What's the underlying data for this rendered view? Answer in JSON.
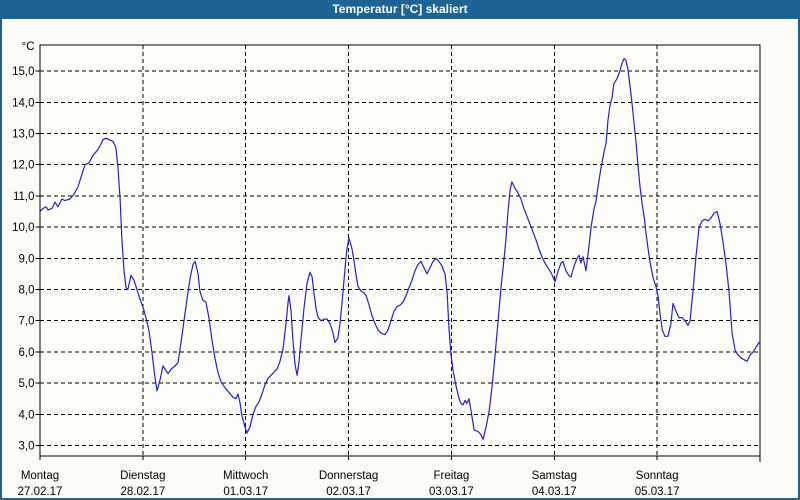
{
  "window": {
    "title": "Temperatur [°C] skaliert"
  },
  "colors": {
    "titlebar_bg": "#1d6396",
    "titlebar_text": "#ffffff",
    "window_bg": "#fbfcf5",
    "plot_bg": "#fefffb",
    "grid": "#000000",
    "frame": "#000000",
    "series_line": "#2121ce",
    "label_text": "#000000"
  },
  "chart_data": {
    "type": "line",
    "title": "Temperatur [°C] skaliert",
    "y_unit_label": "°C",
    "ylabel": "",
    "xlabel": "",
    "ylim": [
      2.6,
      15.8
    ],
    "x_range_hours": [
      0,
      168
    ],
    "grid": "dashed",
    "legend_position": "none",
    "y_ticks": [
      {
        "value": 15,
        "label": "15,0"
      },
      {
        "value": 14,
        "label": "14,0"
      },
      {
        "value": 13,
        "label": "13,0"
      },
      {
        "value": 12,
        "label": "12,0"
      },
      {
        "value": 11,
        "label": "11,0"
      },
      {
        "value": 10,
        "label": "10,0"
      },
      {
        "value": 9,
        "label": "9,0"
      },
      {
        "value": 8,
        "label": "8,0"
      },
      {
        "value": 7,
        "label": "7,0"
      },
      {
        "value": 6,
        "label": "6,0"
      },
      {
        "value": 5,
        "label": "5,0"
      },
      {
        "value": 4,
        "label": "4,0"
      },
      {
        "value": 3,
        "label": "3,0"
      }
    ],
    "x_days": [
      {
        "hour": 0,
        "name": "Montag",
        "date": "27.02.17"
      },
      {
        "hour": 24,
        "name": "Dienstag",
        "date": "28.02.17"
      },
      {
        "hour": 48,
        "name": "Mittwoch",
        "date": "01.03.17"
      },
      {
        "hour": 72,
        "name": "Donnerstag",
        "date": "02.03.17"
      },
      {
        "hour": 96,
        "name": "Freitag",
        "date": "03.03.17"
      },
      {
        "hour": 120,
        "name": "Samstag",
        "date": "04.03.17"
      },
      {
        "hour": 144,
        "name": "Sonntag",
        "date": "05.03.17"
      }
    ],
    "series": [
      {
        "name": "Temperatur",
        "color": "#2121ce",
        "points": [
          [
            0,
            10.5
          ],
          [
            0.7,
            10.6
          ],
          [
            1.4,
            10.65
          ],
          [
            1.9,
            10.55
          ],
          [
            2.8,
            10.6
          ],
          [
            3.5,
            10.8
          ],
          [
            4.2,
            10.65
          ],
          [
            5.1,
            10.9
          ],
          [
            5.8,
            10.85
          ],
          [
            7,
            10.9
          ],
          [
            7.9,
            11.05
          ],
          [
            8.9,
            11.3
          ],
          [
            9.8,
            11.7
          ],
          [
            10.5,
            12.0
          ],
          [
            11.4,
            12.05
          ],
          [
            12.4,
            12.3
          ],
          [
            13.3,
            12.45
          ],
          [
            14,
            12.6
          ],
          [
            14.7,
            12.8
          ],
          [
            15.4,
            12.85
          ],
          [
            16.1,
            12.8
          ],
          [
            17,
            12.75
          ],
          [
            17.7,
            12.55
          ],
          [
            18.2,
            11.9
          ],
          [
            18.7,
            10.9
          ],
          [
            19.1,
            9.6
          ],
          [
            19.6,
            8.6
          ],
          [
            20.1,
            8.05
          ],
          [
            20.5,
            8.0
          ],
          [
            21.2,
            8.45
          ],
          [
            21.9,
            8.3
          ],
          [
            22.6,
            8.0
          ],
          [
            23.3,
            7.7
          ],
          [
            24,
            7.45
          ],
          [
            24.7,
            7.1
          ],
          [
            25.4,
            6.7
          ],
          [
            26.1,
            6.0
          ],
          [
            26.8,
            5.2
          ],
          [
            27.3,
            4.75
          ],
          [
            28,
            5.1
          ],
          [
            28.7,
            5.55
          ],
          [
            29.4,
            5.4
          ],
          [
            29.9,
            5.3
          ],
          [
            30.6,
            5.45
          ],
          [
            31.5,
            5.55
          ],
          [
            32.2,
            5.65
          ],
          [
            32.9,
            6.3
          ],
          [
            33.6,
            7.0
          ],
          [
            34.3,
            7.7
          ],
          [
            35,
            8.35
          ],
          [
            35.7,
            8.8
          ],
          [
            36.2,
            8.9
          ],
          [
            36.9,
            8.5
          ],
          [
            37.3,
            7.95
          ],
          [
            38,
            7.65
          ],
          [
            38.7,
            7.6
          ],
          [
            39.4,
            7.1
          ],
          [
            40.1,
            6.4
          ],
          [
            40.8,
            5.8
          ],
          [
            41.5,
            5.35
          ],
          [
            42.2,
            5.05
          ],
          [
            43.2,
            4.85
          ],
          [
            44.1,
            4.7
          ],
          [
            45,
            4.55
          ],
          [
            45.7,
            4.5
          ],
          [
            46.2,
            4.65
          ],
          [
            46.7,
            4.35
          ],
          [
            47.1,
            3.95
          ],
          [
            47.8,
            3.6
          ],
          [
            48.3,
            3.4
          ],
          [
            49,
            3.6
          ],
          [
            49.7,
            4.0
          ],
          [
            50.4,
            4.25
          ],
          [
            51.1,
            4.4
          ],
          [
            51.8,
            4.65
          ],
          [
            52.5,
            4.95
          ],
          [
            53.2,
            5.15
          ],
          [
            53.9,
            5.25
          ],
          [
            54.6,
            5.35
          ],
          [
            55.3,
            5.45
          ],
          [
            56,
            5.7
          ],
          [
            56.7,
            6.1
          ],
          [
            57.4,
            6.9
          ],
          [
            57.9,
            7.6
          ],
          [
            58.1,
            7.8
          ],
          [
            58.6,
            7.3
          ],
          [
            59,
            6.4
          ],
          [
            59.5,
            5.6
          ],
          [
            60,
            5.25
          ],
          [
            60.4,
            5.65
          ],
          [
            60.9,
            6.4
          ],
          [
            61.6,
            7.4
          ],
          [
            62.3,
            8.2
          ],
          [
            63,
            8.55
          ],
          [
            63.5,
            8.4
          ],
          [
            63.9,
            7.9
          ],
          [
            64.4,
            7.4
          ],
          [
            64.9,
            7.1
          ],
          [
            65.6,
            7.0
          ],
          [
            66.3,
            7.05
          ],
          [
            67,
            7.05
          ],
          [
            67.7,
            6.9
          ],
          [
            68.4,
            6.6
          ],
          [
            68.8,
            6.3
          ],
          [
            69.5,
            6.45
          ],
          [
            70,
            6.9
          ],
          [
            70.5,
            7.6
          ],
          [
            71.2,
            8.7
          ],
          [
            71.6,
            9.3
          ],
          [
            72.1,
            9.65
          ],
          [
            72.8,
            9.3
          ],
          [
            73.3,
            8.9
          ],
          [
            73.7,
            8.5
          ],
          [
            74.2,
            8.1
          ],
          [
            74.9,
            7.95
          ],
          [
            75.6,
            7.9
          ],
          [
            76.1,
            7.8
          ],
          [
            76.8,
            7.5
          ],
          [
            77.5,
            7.15
          ],
          [
            78.2,
            6.9
          ],
          [
            78.9,
            6.7
          ],
          [
            79.6,
            6.6
          ],
          [
            80.5,
            6.55
          ],
          [
            81.2,
            6.7
          ],
          [
            81.9,
            7.0
          ],
          [
            82.6,
            7.3
          ],
          [
            83.3,
            7.45
          ],
          [
            84,
            7.5
          ],
          [
            84.7,
            7.6
          ],
          [
            85.4,
            7.8
          ],
          [
            86.1,
            8.05
          ],
          [
            86.8,
            8.3
          ],
          [
            87.5,
            8.6
          ],
          [
            88.2,
            8.8
          ],
          [
            88.9,
            8.9
          ],
          [
            89.6,
            8.7
          ],
          [
            90.3,
            8.5
          ],
          [
            91,
            8.7
          ],
          [
            91.7,
            8.9
          ],
          [
            92.4,
            9.0
          ],
          [
            93.1,
            8.9
          ],
          [
            93.8,
            8.75
          ],
          [
            94.5,
            8.5
          ],
          [
            95,
            7.9
          ],
          [
            95.4,
            6.8
          ],
          [
            95.9,
            5.9
          ],
          [
            96.4,
            5.4
          ],
          [
            97.1,
            4.9
          ],
          [
            97.8,
            4.5
          ],
          [
            98.2,
            4.35
          ],
          [
            98.7,
            4.3
          ],
          [
            99.2,
            4.45
          ],
          [
            99.6,
            4.35
          ],
          [
            100.1,
            4.5
          ],
          [
            100.6,
            4.1
          ],
          [
            101.3,
            3.5
          ],
          [
            102.2,
            3.45
          ],
          [
            102.9,
            3.35
          ],
          [
            103.4,
            3.2
          ],
          [
            104.1,
            3.6
          ],
          [
            104.8,
            4.1
          ],
          [
            105.5,
            4.9
          ],
          [
            106.2,
            5.9
          ],
          [
            106.9,
            7.0
          ],
          [
            107.6,
            8.1
          ],
          [
            108.3,
            9.0
          ],
          [
            108.7,
            9.6
          ],
          [
            109.2,
            10.5
          ],
          [
            109.7,
            11.2
          ],
          [
            110.1,
            11.45
          ],
          [
            110.8,
            11.25
          ],
          [
            111.5,
            11.1
          ],
          [
            112.2,
            10.9
          ],
          [
            112.9,
            10.6
          ],
          [
            113.6,
            10.35
          ],
          [
            114.3,
            10.1
          ],
          [
            115,
            9.85
          ],
          [
            115.7,
            9.6
          ],
          [
            116.4,
            9.3
          ],
          [
            117.1,
            9.05
          ],
          [
            117.8,
            8.85
          ],
          [
            118.5,
            8.7
          ],
          [
            119.2,
            8.55
          ],
          [
            119.7,
            8.4
          ],
          [
            120.2,
            8.25
          ],
          [
            120.9,
            8.6
          ],
          [
            121.6,
            8.85
          ],
          [
            122,
            8.9
          ],
          [
            122.7,
            8.6
          ],
          [
            123.4,
            8.45
          ],
          [
            123.9,
            8.4
          ],
          [
            124.6,
            8.75
          ],
          [
            125.3,
            9.0
          ],
          [
            125.8,
            9.1
          ],
          [
            126.2,
            8.85
          ],
          [
            126.7,
            9.05
          ],
          [
            127.4,
            8.6
          ],
          [
            128.1,
            9.4
          ],
          [
            128.6,
            10.0
          ],
          [
            129.3,
            10.6
          ],
          [
            129.7,
            10.8
          ],
          [
            130.2,
            11.3
          ],
          [
            130.9,
            11.9
          ],
          [
            131.6,
            12.4
          ],
          [
            132.1,
            12.7
          ],
          [
            132.5,
            13.4
          ],
          [
            133,
            13.9
          ],
          [
            133.5,
            14.15
          ],
          [
            133.9,
            14.6
          ],
          [
            134.6,
            14.75
          ],
          [
            135.3,
            15.0
          ],
          [
            135.8,
            15.25
          ],
          [
            136.3,
            15.4
          ],
          [
            136.7,
            15.35
          ],
          [
            137.2,
            15.05
          ],
          [
            137.7,
            14.5
          ],
          [
            138.1,
            14.0
          ],
          [
            138.6,
            13.35
          ],
          [
            139.1,
            12.7
          ],
          [
            139.5,
            12.0
          ],
          [
            140,
            11.3
          ],
          [
            140.5,
            10.75
          ],
          [
            141,
            10.3
          ],
          [
            141.4,
            9.8
          ],
          [
            141.9,
            9.3
          ],
          [
            142.3,
            8.9
          ],
          [
            143,
            8.4
          ],
          [
            143.7,
            8.1
          ],
          [
            144.2,
            7.8
          ],
          [
            144.7,
            7.2
          ],
          [
            145.2,
            6.7
          ],
          [
            145.8,
            6.5
          ],
          [
            146.5,
            6.5
          ],
          [
            147.2,
            6.9
          ],
          [
            147.7,
            7.55
          ],
          [
            148.4,
            7.3
          ],
          [
            149.1,
            7.1
          ],
          [
            149.8,
            7.1
          ],
          [
            150.5,
            7.0
          ],
          [
            151.2,
            6.85
          ],
          [
            151.7,
            7.0
          ],
          [
            152.4,
            8.0
          ],
          [
            153.1,
            9.1
          ],
          [
            153.8,
            10.0
          ],
          [
            154.5,
            10.2
          ],
          [
            155.2,
            10.25
          ],
          [
            155.9,
            10.2
          ],
          [
            156.6,
            10.3
          ],
          [
            157.3,
            10.45
          ],
          [
            158,
            10.5
          ],
          [
            158.7,
            10.1
          ],
          [
            159.4,
            9.5
          ],
          [
            160.1,
            8.8
          ],
          [
            160.8,
            7.9
          ],
          [
            161.5,
            6.6
          ],
          [
            162.2,
            6.05
          ],
          [
            162.9,
            5.9
          ],
          [
            163.6,
            5.8
          ],
          [
            164.3,
            5.75
          ],
          [
            165,
            5.7
          ],
          [
            165.7,
            5.9
          ],
          [
            166.4,
            6.0
          ],
          [
            167.1,
            6.15
          ],
          [
            167.8,
            6.3
          ]
        ]
      }
    ]
  }
}
